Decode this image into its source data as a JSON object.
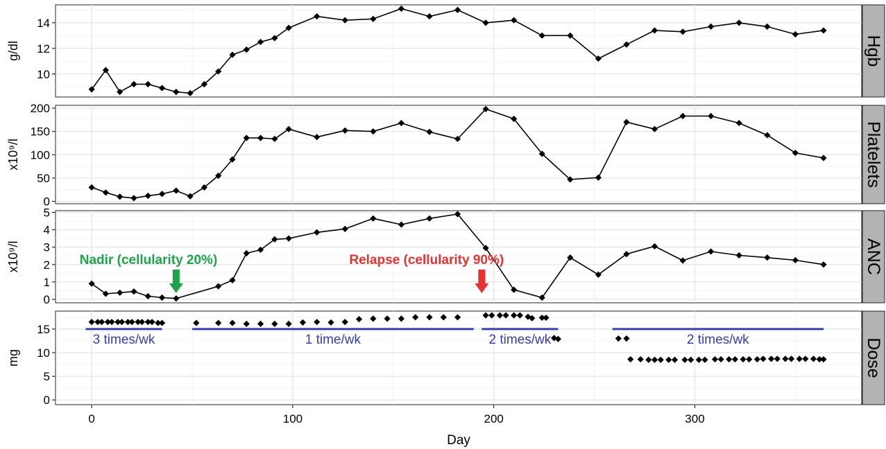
{
  "chart_data": {
    "type": "line",
    "xlabel": "Day",
    "xlim": [
      -18,
      383
    ],
    "x_ticks": [
      0,
      100,
      200,
      300
    ],
    "grid": true,
    "panels": [
      {
        "strip": "Hgb",
        "ylabel": "g/dl",
        "ylim": [
          8.2,
          15.4
        ],
        "y_ticks": [
          10,
          12,
          14
        ],
        "series": [
          {
            "style": "line-points",
            "x": [
              0,
              7,
              14,
              21,
              28,
              35,
              42,
              49,
              56,
              63,
              70,
              77,
              84,
              91,
              98,
              112,
              126,
              140,
              154,
              168,
              182,
              196,
              210,
              224,
              238,
              252,
              266,
              280,
              294,
              308,
              322,
              336,
              350,
              364
            ],
            "y": [
              8.8,
              10.3,
              8.6,
              9.2,
              9.2,
              8.9,
              8.6,
              8.5,
              9.2,
              10.2,
              11.5,
              11.9,
              12.5,
              12.8,
              13.6,
              14.5,
              14.2,
              14.3,
              15.1,
              14.5,
              15.0,
              14.0,
              14.2,
              13.0,
              13.0,
              11.2,
              12.3,
              13.4,
              13.3,
              13.7,
              14.0,
              13.7,
              13.1,
              13.4
            ]
          }
        ]
      },
      {
        "strip": "Platelets",
        "ylabel": "x10⁹/l",
        "ylim": [
          -5,
          206
        ],
        "y_ticks": [
          0,
          50,
          100,
          150,
          200
        ],
        "series": [
          {
            "style": "line-points",
            "x": [
              0,
              7,
              14,
              21,
              28,
              35,
              42,
              49,
              56,
              63,
              70,
              77,
              84,
              91,
              98,
              112,
              126,
              140,
              154,
              168,
              182,
              196,
              210,
              224,
              238,
              252,
              266,
              280,
              294,
              308,
              322,
              336,
              350,
              364
            ],
            "y": [
              30,
              19,
              10,
              7,
              12,
              16,
              23,
              11,
              30,
              55,
              90,
              136,
              136,
              134,
              155,
              138,
              152,
              150,
              168,
              149,
              134,
              198,
              177,
              102,
              47,
              51,
              170,
              155,
              183,
              183,
              168,
              142,
              104,
              93
            ]
          }
        ]
      },
      {
        "strip": "ANC",
        "ylabel": "x10⁹/l",
        "ylim": [
          -0.2,
          5.1
        ],
        "y_ticks": [
          0,
          1,
          2,
          3,
          4,
          5
        ],
        "series": [
          {
            "style": "line-points",
            "x": [
              0,
              7,
              14,
              21,
              28,
              35,
              42,
              63,
              70,
              77,
              84,
              91,
              98,
              112,
              126,
              140,
              154,
              168,
              182,
              196,
              210,
              224,
              238,
              252,
              266,
              280,
              294,
              308,
              322,
              336,
              350,
              364
            ],
            "y": [
              0.9,
              0.32,
              0.38,
              0.45,
              0.18,
              0.1,
              0.05,
              0.75,
              1.1,
              2.65,
              2.85,
              3.45,
              3.5,
              3.85,
              4.05,
              4.65,
              4.3,
              4.65,
              4.9,
              2.95,
              0.55,
              0.1,
              2.4,
              1.42,
              2.6,
              3.05,
              2.23,
              2.75,
              2.53,
              2.4,
              2.25,
              2.0
            ]
          }
        ],
        "annotations": [
          {
            "text": "Nadir (cellularity 20%)",
            "color": "#1fa34a",
            "arrow_x": 42,
            "arrow_color": "#1fa34a"
          },
          {
            "text": "Relapse (cellularity 90%)",
            "color": "#e8322f",
            "arrow_x": 194,
            "arrow_color": "#e8322f"
          }
        ]
      },
      {
        "strip": "Dose",
        "ylabel": "mg",
        "ylim": [
          -1,
          18.8
        ],
        "y_ticks": [
          0,
          5,
          10,
          15
        ],
        "series": [
          {
            "style": "points",
            "x": [
              0,
              3,
              5,
              8,
              10,
              13,
              15,
              18,
              20,
              23,
              25,
              28,
              30,
              33,
              35,
              52,
              63,
              70,
              77,
              84,
              91,
              98,
              105,
              112,
              119,
              126,
              133,
              140,
              147,
              154,
              161,
              168,
              175,
              182,
              196,
              199,
              203,
              206,
              210,
              213,
              217,
              219,
              224,
              226,
              230,
              232,
              262,
              266,
              268,
              273,
              277,
              280,
              283,
              287,
              290,
              295,
              298,
              302,
              305,
              310,
              313,
              317,
              320,
              324,
              327,
              331,
              334,
              338,
              341,
              345,
              348,
              352,
              355,
              359,
              362,
              364
            ],
            "y": [
              16.5,
              16.5,
              16.5,
              16.5,
              16.5,
              16.5,
              16.5,
              16.5,
              16.5,
              16.5,
              16.5,
              16.5,
              16.5,
              16.3,
              16.3,
              16.3,
              16.3,
              16.3,
              16.1,
              16.1,
              16.1,
              16.1,
              16.4,
              16.5,
              16.4,
              16.5,
              17.1,
              17.2,
              17.2,
              17.2,
              17.5,
              17.5,
              17.5,
              17.5,
              17.9,
              17.9,
              17.9,
              17.9,
              17.9,
              17.9,
              17.6,
              17.3,
              17.4,
              17.4,
              13.1,
              12.9,
              13.0,
              13.0,
              8.6,
              8.6,
              8.5,
              8.5,
              8.5,
              8.5,
              8.5,
              8.5,
              8.5,
              8.5,
              8.5,
              8.6,
              8.6,
              8.6,
              8.6,
              8.6,
              8.6,
              8.6,
              8.7,
              8.7,
              8.7,
              8.7,
              8.7,
              8.7,
              8.7,
              8.7,
              8.6,
              8.6
            ]
          }
        ],
        "schedules": [
          {
            "label": "3 times/wk",
            "x_start": -3,
            "x_end": 35,
            "y": 15
          },
          {
            "label": "1 time/wk",
            "x_start": 50,
            "x_end": 190,
            "y": 15
          },
          {
            "label": "2 times/wk",
            "x_start": 194,
            "x_end": 232,
            "y": 15
          },
          {
            "label": "2 times/wk",
            "x_start": 259,
            "x_end": 364,
            "y": 15
          }
        ],
        "schedule_color": "#3640a8"
      }
    ]
  },
  "colors": {
    "panel_background": "#ffffff",
    "grid": "#e3e3e3",
    "strip_background": "#b3b3b3",
    "series": "#000000"
  }
}
